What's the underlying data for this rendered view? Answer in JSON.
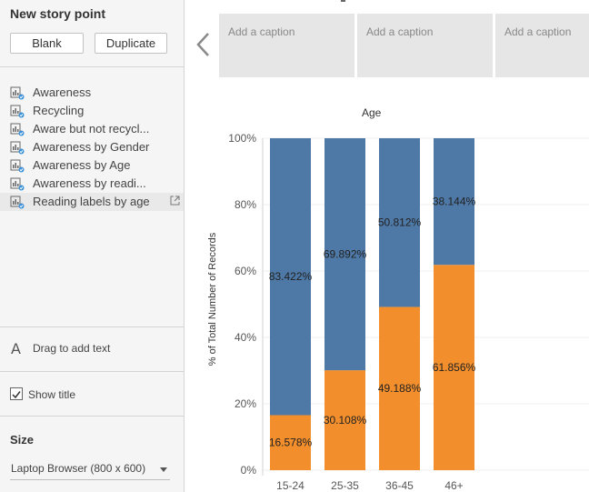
{
  "left_panel": {
    "title": "New story point",
    "blank_button": "Blank",
    "duplicate_button": "Duplicate",
    "sheets": [
      {
        "label": "Awareness"
      },
      {
        "label": "Recycling"
      },
      {
        "label": "Aware but not recycl..."
      },
      {
        "label": "Awareness by Gender"
      },
      {
        "label": "Awareness by Age"
      },
      {
        "label": "Awareness by readi..."
      },
      {
        "label": "Reading labels by age"
      }
    ],
    "drag_icon": "A",
    "drag_text": "Drag to add text",
    "show_title_label": "Show title",
    "show_title_checked": true,
    "size_title": "Size",
    "size_value": "Laptop Browser (800 x 600)"
  },
  "captions": [
    {
      "text": "Add a caption"
    },
    {
      "text": "Add a caption"
    },
    {
      "text": "Add a caption"
    }
  ],
  "colors": {
    "blue": "#4e79a7",
    "orange": "#f28e2b",
    "panel_bg": "#f5f5f5",
    "caption_bg": "#e6e6e6"
  },
  "chart_data": {
    "type": "bar",
    "stacked": true,
    "title": "Age",
    "ylabel": "% of Total Number of Records",
    "ylim": [
      0,
      100
    ],
    "yticks": [
      "0%",
      "20%",
      "40%",
      "60%",
      "80%",
      "100%"
    ],
    "categories": [
      "15-24",
      "25-35",
      "36-45",
      "46+"
    ],
    "series": [
      {
        "color": "#f28e2b",
        "values": [
          16.578,
          30.108,
          49.188,
          61.856
        ],
        "labels": [
          "16.578%",
          "30.108%",
          "49.188%",
          "61.856%"
        ]
      },
      {
        "color": "#4e79a7",
        "values": [
          83.422,
          69.892,
          50.812,
          38.144
        ],
        "labels": [
          "83.422%",
          "69.892%",
          "50.812%",
          "38.144%"
        ]
      }
    ]
  }
}
